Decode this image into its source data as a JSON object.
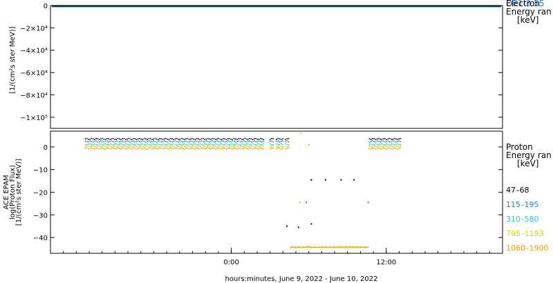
{
  "footer": {
    "xlabel": "hours:minutes, June  9, 2022 - June 10, 2022"
  },
  "chart_data": [
    {
      "type": "line",
      "title": "",
      "ylabel_lines": [
        "",
        "[1/(cm²s ster MeV)]"
      ],
      "ylim": [
        -110000,
        0
      ],
      "y_ticks": [
        0,
        -20000,
        -40000,
        -60000,
        -80000,
        -100000
      ],
      "y_tick_labels": [
        "0",
        "−2×10⁴",
        "−4×10⁴",
        "−6×10⁴",
        "−8×10⁴",
        "−1×10⁵"
      ],
      "legend": {
        "position": "right",
        "title_lines": [
          "Electron",
          "Energy ran",
          "[keV]"
        ],
        "overlapped_text": "DE1-3 55"
      },
      "series": [
        {
          "label": "",
          "color": "#000000",
          "y": 0
        },
        {
          "label": "",
          "color": "#00aabb",
          "y": 0
        }
      ]
    },
    {
      "type": "scatter",
      "title": "",
      "ylabel_lines": [
        "ACE EPAM",
        "log(Proton Flux)",
        "[1/(cm²s ster MeV)]"
      ],
      "ylim": [
        -47,
        7
      ],
      "y_ticks": [
        0,
        -10,
        -20,
        -30,
        -40
      ],
      "y_tick_labels": [
        "0",
        "−10",
        "−20",
        "−30",
        "−40"
      ],
      "x_axis": {
        "range_hours": [
          -14,
          21
        ],
        "tick_labels": [
          {
            "hour": 0,
            "label": "0:00"
          },
          {
            "hour": 12,
            "label": "12:00"
          }
        ],
        "minor_tick_step_hours": 1
      },
      "legend": {
        "position": "right",
        "title_lines": [
          "Proton",
          "Energy ran",
          "[keV]"
        ]
      },
      "series": [
        {
          "label": "47–68",
          "color": "#000000",
          "base": 3.3,
          "spikes": [
            {
              "x": 6.2,
              "y": -14.5
            },
            {
              "x": 7.3,
              "y": -14.5
            },
            {
              "x": 8.5,
              "y": -14.5
            },
            {
              "x": 9.5,
              "y": -14.5
            },
            {
              "x": 4.3,
              "y": -35
            },
            {
              "x": 5.2,
              "y": -35.5
            },
            {
              "x": 6.2,
              "y": -34
            }
          ]
        },
        {
          "label": "115–195",
          "color": "#1e7fd6",
          "base": 2.2,
          "spikes": [
            {
              "x": 5.8,
              "y": -24.5
            },
            {
              "x": 10.6,
              "y": -24.5
            }
          ]
        },
        {
          "label": "310–580",
          "color": "#22c8d8",
          "base": 0.9,
          "spikes": [
            {
              "x": 6.0,
              "y": -44
            }
          ]
        },
        {
          "label": "795–1193",
          "color": "#d4d400",
          "base": 0,
          "spikes": [
            {
              "x": 5.4,
              "y": 6
            }
          ]
        },
        {
          "label": "1060–1900",
          "color": "#ff9900",
          "base": -0.9,
          "spikes": [
            {
              "x": 5.3,
              "y": -24.5
            },
            {
              "x": 6.0,
              "y": 1
            }
          ]
        }
      ],
      "data_segments_hours": [
        [
          -11.3,
          2.6
        ],
        [
          3.0,
          3.3
        ],
        [
          3.5,
          4.0
        ],
        [
          4.2,
          4.5
        ],
        [
          10.7,
          13.1
        ]
      ],
      "low_floor": {
        "y": -44.5,
        "hours": [
          4.6,
          10.6
        ],
        "color": "#ff9900",
        "alt_color": "#d4d400"
      }
    }
  ]
}
